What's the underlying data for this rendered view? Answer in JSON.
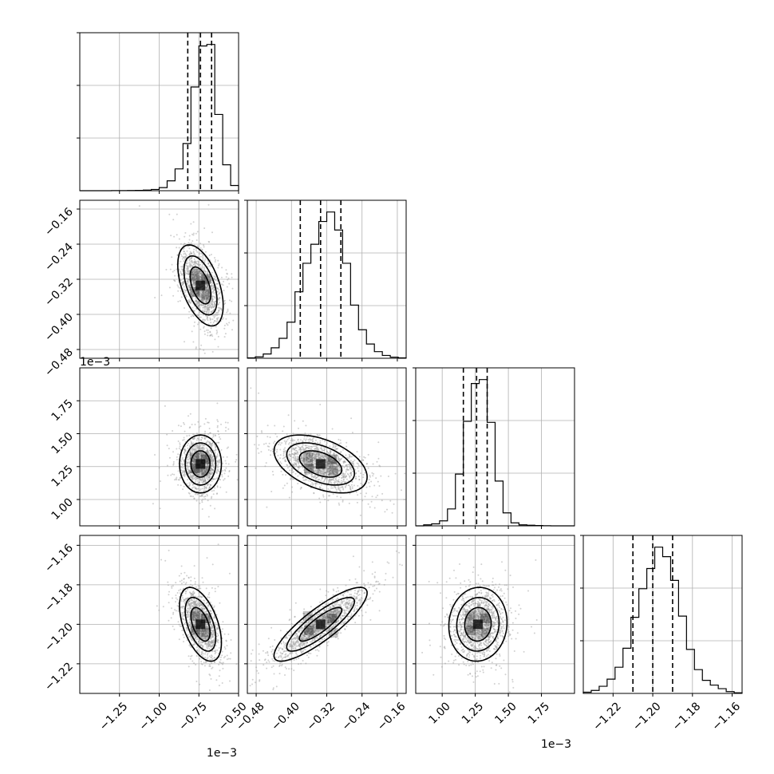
{
  "chart_data": {
    "type": "corner",
    "parameters": [
      {
        "index": 0,
        "range": [
          -1.5,
          -0.5
        ],
        "ticks": [
          -1.25,
          -1.0,
          -0.75,
          -0.5
        ],
        "tick_labels": [
          "−1.25",
          "−1.00",
          "−0.75",
          "−0.50"
        ],
        "offset_text": "1e−3",
        "quantiles": [
          -0.82,
          -0.74,
          -0.67
        ],
        "median": -0.74
      },
      {
        "index": 1,
        "range": [
          -0.5,
          -0.14
        ],
        "ticks": [
          -0.48,
          -0.4,
          -0.32,
          -0.24,
          -0.16
        ],
        "tick_labels": [
          "−0.48",
          "−0.40",
          "−0.32",
          "−0.24",
          "−0.16"
        ],
        "offset_text": "",
        "quantiles": [
          -0.38,
          -0.334,
          -0.288
        ],
        "median": -0.334
      },
      {
        "index": 2,
        "range": [
          0.8,
          2.0
        ],
        "ticks": [
          1.0,
          1.25,
          1.5,
          1.75
        ],
        "tick_labels": [
          "1.00",
          "1.25",
          "1.50",
          "1.75"
        ],
        "offset_text": "1e−3",
        "quantiles": [
          1.16,
          1.26,
          1.34
        ],
        "median": 1.26
      },
      {
        "index": 3,
        "range": [
          -1.235,
          -1.155
        ],
        "ticks": [
          -1.22,
          -1.2,
          -1.18,
          -1.16
        ],
        "tick_labels": [
          "−1.22",
          "−1.20",
          "−1.18",
          "−1.16"
        ],
        "offset_text": "",
        "quantiles": [
          -1.21,
          -1.2,
          -1.19
        ],
        "median": -1.2
      }
    ],
    "marginals": [
      {
        "param": 0,
        "bins": [
          -1.5,
          -1.45,
          -1.4,
          -1.35,
          -1.3,
          -1.25,
          -1.2,
          -1.15,
          -1.1,
          -1.05,
          -1.0,
          -0.95,
          -0.9,
          -0.85,
          -0.8,
          -0.75,
          -0.7,
          -0.65,
          -0.6,
          -0.55,
          -0.5
        ],
        "counts": [
          0,
          0,
          0,
          0,
          1,
          1,
          2,
          3,
          6,
          12,
          30,
          95,
          210,
          455,
          1000,
          1395,
          1410,
          735,
          250,
          50
        ]
      },
      {
        "param": 1,
        "bins": [
          -0.5,
          -0.482,
          -0.464,
          -0.446,
          -0.428,
          -0.41,
          -0.392,
          -0.374,
          -0.356,
          -0.338,
          -0.32,
          -0.302,
          -0.284,
          -0.266,
          -0.248,
          -0.23,
          -0.212,
          -0.194,
          -0.176,
          -0.158,
          -0.14
        ],
        "counts": [
          4,
          15,
          45,
          110,
          210,
          380,
          700,
          1000,
          1200,
          1440,
          1540,
          1350,
          1000,
          560,
          300,
          150,
          70,
          30,
          12,
          4
        ]
      },
      {
        "param": 2,
        "bins": [
          0.8,
          0.86,
          0.92,
          0.98,
          1.04,
          1.1,
          1.16,
          1.22,
          1.28,
          1.34,
          1.4,
          1.46,
          1.52,
          1.58,
          1.64,
          1.7,
          1.76,
          1.82,
          1.88,
          1.94,
          2.0
        ],
        "counts": [
          0,
          10,
          20,
          50,
          170,
          520,
          1050,
          1430,
          1470,
          1040,
          450,
          130,
          30,
          10,
          6,
          3,
          1,
          0,
          0,
          0
        ]
      },
      {
        "param": 3,
        "bins": [
          -1.235,
          -1.231,
          -1.227,
          -1.223,
          -1.219,
          -1.215,
          -1.211,
          -1.207,
          -1.203,
          -1.199,
          -1.195,
          -1.191,
          -1.187,
          -1.183,
          -1.179,
          -1.175,
          -1.171,
          -1.167,
          -1.163,
          -1.159,
          -1.155
        ],
        "counts": [
          10,
          25,
          60,
          120,
          220,
          380,
          640,
          880,
          1050,
          1230,
          1150,
          950,
          650,
          370,
          200,
          110,
          70,
          40,
          15,
          5
        ]
      }
    ],
    "pairs": [
      {
        "x_param": 0,
        "y_param": 1,
        "mean": [
          -0.74,
          -0.334
        ],
        "sd": [
          0.065,
          0.042
        ],
        "corr": -0.5
      },
      {
        "x_param": 0,
        "y_param": 2,
        "mean": [
          -0.74,
          1.27
        ],
        "sd": [
          0.06,
          0.1
        ],
        "corr": 0.0
      },
      {
        "x_param": 1,
        "y_param": 2,
        "mean": [
          -0.334,
          1.27
        ],
        "sd": [
          0.048,
          0.1
        ],
        "corr": -0.45
      },
      {
        "x_param": 0,
        "y_param": 3,
        "mean": [
          -0.74,
          -1.2
        ],
        "sd": [
          0.06,
          0.0085
        ],
        "corr": -0.5
      },
      {
        "x_param": 1,
        "y_param": 3,
        "mean": [
          -0.334,
          -1.2
        ],
        "sd": [
          0.048,
          0.0085
        ],
        "corr": 0.85
      },
      {
        "x_param": 2,
        "y_param": 3,
        "mean": [
          1.27,
          -1.2
        ],
        "sd": [
          0.1,
          0.0085
        ],
        "corr": 0.05
      }
    ],
    "contour_levels_sigma": [
      1.0,
      1.6,
      2.2
    ],
    "grid": true,
    "colors": {
      "hist": "#000000",
      "points": "#9a9a9a",
      "contour": "#000000",
      "grid": "#b0b0b0",
      "frame": "#000000"
    }
  }
}
